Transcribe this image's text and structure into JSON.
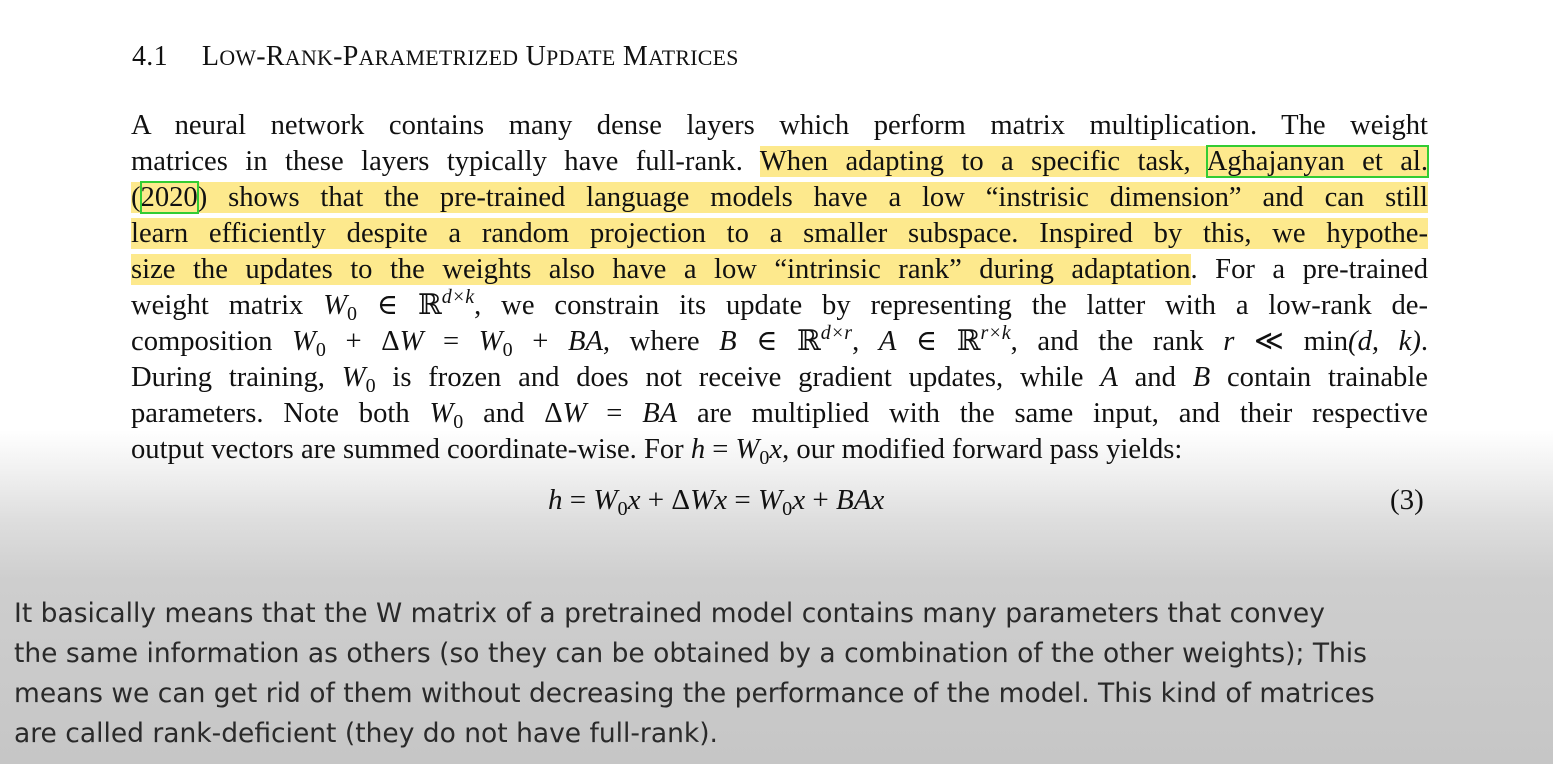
{
  "paper": {
    "section_number": "4.1",
    "section_title_parts": [
      {
        "cap": "L",
        "sc": "OW"
      },
      {
        "cap": "-R",
        "sc": "ANK"
      },
      {
        "cap": "-P",
        "sc": "ARAMETRIZED"
      },
      {
        "cap": " U",
        "sc": "PDATE"
      },
      {
        "cap": " M",
        "sc": "ATRICES"
      }
    ],
    "lines": {
      "l1": "A neural network contains many dense layers which perform matrix multiplication.  The weight",
      "l2a": "matrices in these layers typically have full-rank. ",
      "l2b": "When adapting to a specific task, ",
      "l2c": "Aghajanyan et al.",
      "l3a": "(",
      "l3b": "2020",
      "l3c": ") shows that the pre-trained language models have a low “instrisic dimension” and can still",
      "l4": "learn efficiently despite a random projection to a smaller subspace.  Inspired by this, we hypothe-",
      "l5a": "size the updates to the weights also have a low “intrinsic rank” during adaptation",
      "l5b": ". For a pre-trained",
      "l6a": "weight matrix ",
      "l6b": ", we constrain its update by representing the latter with a low-rank de-",
      "l7a": "composition ",
      "l7b": ", where ",
      "l7c": ", and the rank ",
      "l7d": ".",
      "l8a": "During training, ",
      "l8b": " is frozen and does not receive gradient updates, while ",
      "l8c": " and ",
      "l8d": " contain trainable",
      "l9a": "parameters. Note both ",
      "l9b": " and ",
      "l9c": " are multiplied with the same input, and their respective",
      "l10a": "output vectors are summed coordinate-wise. For ",
      "l10b": ", our modified forward pass yields:"
    },
    "math": {
      "W": "W",
      "zero": "0",
      "in": " ∈ ",
      "R": "ℝ",
      "dxk": "d×k",
      "dxr": "d×r",
      "rxk": "r×k",
      "plus": " + ",
      "eq": " = ",
      "delta": "Δ",
      "B": "B",
      "A": "A",
      "BA": "BA",
      "comma_sep": ", ",
      "r_ll": "r",
      "ll": " ≪ ",
      "min": "min",
      "dk": "(d, k)",
      "h": "h",
      "x": "x",
      "Wx": "Wx",
      "BAx": "BAx"
    },
    "equation_number": "(3)"
  },
  "caption": {
    "lines": [
      "It basically means that the W matrix of a pretrained model contains many parameters that convey",
      "the same information as others (so they can be obtained by a combination of the other weights); This",
      "means we can get rid of them without decreasing the performance of the model. This kind of matrices",
      "are called rank-deficient (they do not have full-rank)."
    ]
  },
  "colors": {
    "highlight": "#fde98d",
    "citation_box": "#33cc33"
  }
}
